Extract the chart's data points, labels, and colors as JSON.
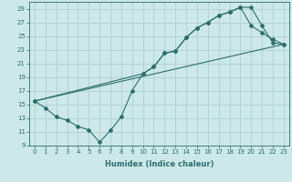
{
  "title": "",
  "xlabel": "Humidex (Indice chaleur)",
  "ylabel": "",
  "bg_color": "#cce8e8",
  "grid_color": "#b0d0d0",
  "line_color": "#2d6e6e",
  "xlim": [
    -0.5,
    23.5
  ],
  "ylim": [
    9,
    30
  ],
  "xticks": [
    0,
    1,
    2,
    3,
    4,
    5,
    6,
    7,
    8,
    9,
    10,
    11,
    12,
    13,
    14,
    15,
    16,
    17,
    18,
    19,
    20,
    21,
    22,
    23
  ],
  "yticks": [
    9,
    11,
    13,
    15,
    17,
    19,
    21,
    23,
    25,
    27,
    29
  ],
  "line1_x": [
    0,
    1,
    2,
    3,
    4,
    5,
    6,
    7,
    8,
    9,
    10,
    11,
    12,
    13,
    14,
    15,
    16,
    17,
    18,
    19,
    20,
    21,
    22,
    23
  ],
  "line1_y": [
    15.5,
    14.5,
    13.2,
    12.7,
    11.8,
    11.3,
    9.5,
    11.2,
    13.2,
    17.0,
    19.5,
    20.5,
    22.5,
    22.8,
    24.8,
    26.2,
    27.0,
    28.0,
    28.5,
    29.2,
    26.5,
    25.5,
    24.5,
    23.8
  ],
  "line2_x": [
    0,
    10,
    11,
    12,
    13,
    14,
    15,
    16,
    17,
    18,
    19,
    20,
    21,
    22,
    23
  ],
  "line2_y": [
    15.5,
    19.5,
    20.5,
    22.5,
    22.8,
    24.8,
    26.2,
    27.0,
    28.0,
    28.5,
    29.2,
    29.2,
    26.5,
    24.0,
    23.8
  ],
  "line3_x": [
    0,
    23
  ],
  "line3_y": [
    15.5,
    23.8
  ],
  "tick_fontsize": 5.0,
  "xlabel_fontsize": 6.0
}
